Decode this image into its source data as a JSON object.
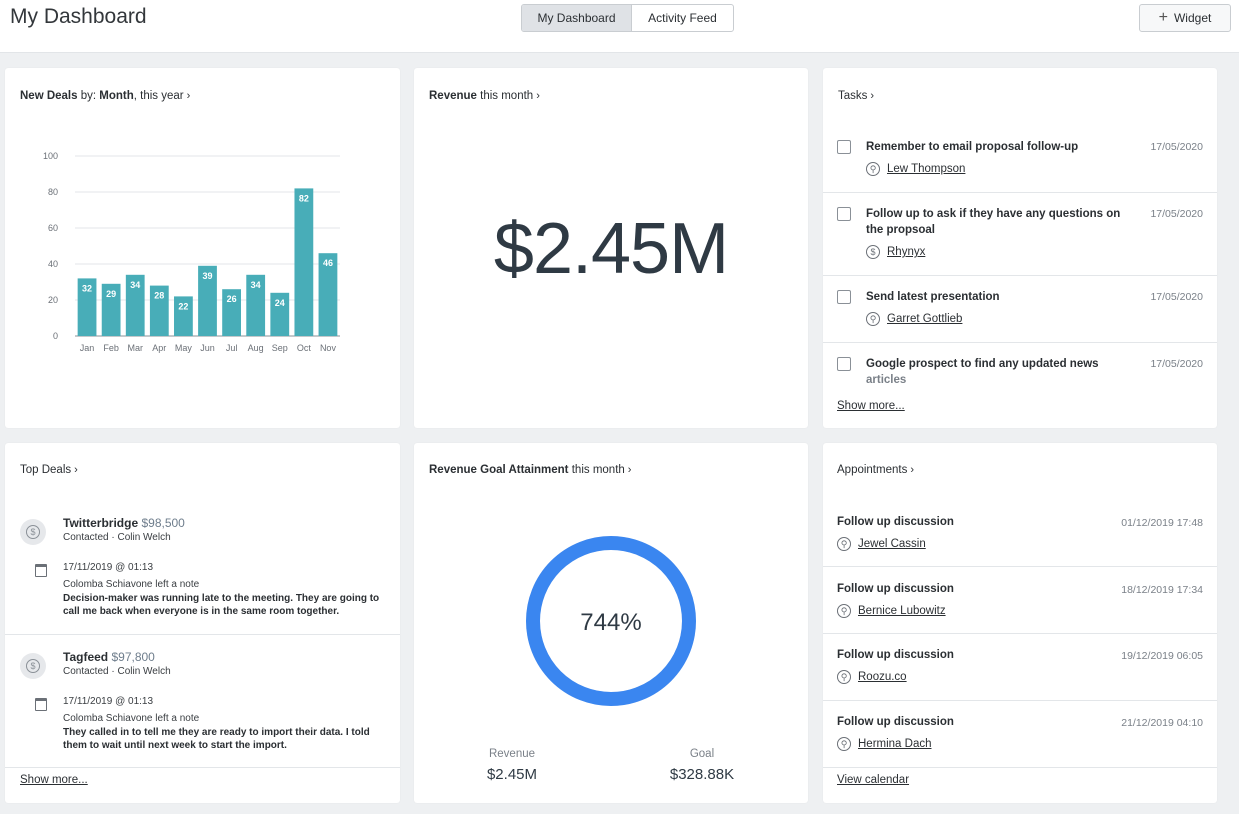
{
  "header": {
    "title": "My Dashboard",
    "tabs": [
      {
        "label": "My Dashboard",
        "active": true
      },
      {
        "label": "Activity Feed",
        "active": false
      }
    ],
    "widget_label": "Widget"
  },
  "new_deals": {
    "title_bold": "New Deals",
    "title_by": " by: ",
    "title_group": "Month",
    "title_suffix": ", this year"
  },
  "chart_data": {
    "type": "bar",
    "categories": [
      "Jan",
      "Feb",
      "Mar",
      "Apr",
      "May",
      "Jun",
      "Jul",
      "Aug",
      "Sep",
      "Oct",
      "Nov"
    ],
    "values": [
      32,
      29,
      34,
      28,
      22,
      39,
      26,
      34,
      24,
      82,
      46
    ],
    "yticks": [
      0,
      20,
      40,
      60,
      80,
      100
    ],
    "ylim": [
      0,
      100
    ],
    "bar_color": "#48adb8",
    "grid": true
  },
  "revenue": {
    "title_bold": "Revenue",
    "title_suffix": " this month",
    "value": "$2.45M"
  },
  "tasks": {
    "title": "Tasks",
    "items": [
      {
        "title": "Remember to email proposal follow-up",
        "date": "17/05/2020",
        "person": "Lew Thompson",
        "icon": "person-icon"
      },
      {
        "title": "Follow up to ask if they have any questions on the propsoal",
        "date": "17/05/2020",
        "person": "Rhynyx",
        "icon": "dollar-icon"
      },
      {
        "title": "Send latest presentation",
        "date": "17/05/2020",
        "person": "Garret Gottlieb",
        "icon": "person-icon"
      },
      {
        "title": "Google prospect to find any updated news",
        "title_extra": "articles",
        "date": "17/05/2020"
      }
    ],
    "show_more": "Show more..."
  },
  "top_deals": {
    "title": "Top Deals",
    "items": [
      {
        "name": "Twitterbridge",
        "amount": "$98,500",
        "status": "Contacted · Colin Welch",
        "note_meta": "17/11/2019 @ 01:13",
        "note_author": "Colomba Schiavone left a note",
        "note": "Decision-maker was running late to the meeting. They are going to call me back when everyone is in the same room together."
      },
      {
        "name": "Tagfeed",
        "amount": "$97,800",
        "status": "Contacted · Colin Welch",
        "note_meta": "17/11/2019 @ 01:13",
        "note_author": "Colomba Schiavone left a note",
        "note": "They called in to tell me they are ready to import their data. I told them to wait until next week to start the import."
      }
    ],
    "show_more": "Show more..."
  },
  "goal": {
    "title_bold": "Revenue Goal Attainment",
    "title_suffix": " this month",
    "percent_label": "744%",
    "attainment_fraction": 1.0,
    "ring_color": "#3a86f0",
    "revenue_label": "Revenue",
    "revenue_value": "$2.45M",
    "goal_label": "Goal",
    "goal_value": "$328.88K"
  },
  "appointments": {
    "title": "Appointments",
    "items": [
      {
        "title": "Follow up discussion",
        "date": "01/12/2019 17:48",
        "person": "Jewel Cassin"
      },
      {
        "title": "Follow up discussion",
        "date": "18/12/2019 17:34",
        "person": "Bernice Lubowitz"
      },
      {
        "title": "Follow up discussion",
        "date": "19/12/2019 06:05",
        "person": "Roozu.co"
      },
      {
        "title": "Follow up discussion",
        "date": "21/12/2019 04:10",
        "person": "Hermina Dach"
      }
    ],
    "view_calendar": "View calendar"
  }
}
